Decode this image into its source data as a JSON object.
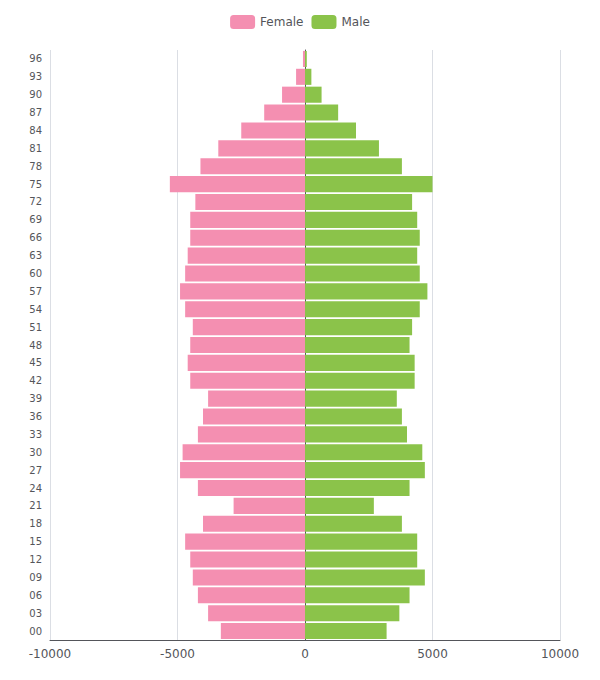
{
  "chart_data": {
    "type": "bar",
    "orientation": "horizontal",
    "categories": [
      "00",
      "03",
      "06",
      "09",
      "12",
      "15",
      "18",
      "21",
      "24",
      "27",
      "30",
      "33",
      "36",
      "39",
      "42",
      "45",
      "48",
      "51",
      "54",
      "57",
      "60",
      "63",
      "66",
      "69",
      "72",
      "75",
      "78",
      "81",
      "84",
      "87",
      "90",
      "93",
      "96"
    ],
    "series": [
      {
        "name": "Female",
        "color": "#f48fb1",
        "values": [
          -3300,
          -3800,
          -4200,
          -4400,
          -4500,
          -4700,
          -4000,
          -2800,
          -4200,
          -4900,
          -4800,
          -4200,
          -4000,
          -3800,
          -4500,
          -4600,
          -4500,
          -4400,
          -4700,
          -4900,
          -4700,
          -4600,
          -4500,
          -4500,
          -4300,
          -5300,
          -4100,
          -3400,
          -2500,
          -1600,
          -900,
          -350,
          -80
        ]
      },
      {
        "name": "Male",
        "color": "#8bc34a",
        "values": [
          3200,
          3700,
          4100,
          4700,
          4400,
          4400,
          3800,
          2700,
          4100,
          4700,
          4600,
          4000,
          3800,
          3600,
          4300,
          4300,
          4100,
          4200,
          4500,
          4800,
          4500,
          4400,
          4500,
          4400,
          4200,
          5000,
          3800,
          2900,
          2000,
          1300,
          650,
          250,
          70
        ]
      }
    ],
    "xlim": [
      -10000,
      10000
    ],
    "xticks": [
      -10000,
      -5000,
      0,
      5000,
      10000
    ],
    "grid": true,
    "legend": "top"
  }
}
